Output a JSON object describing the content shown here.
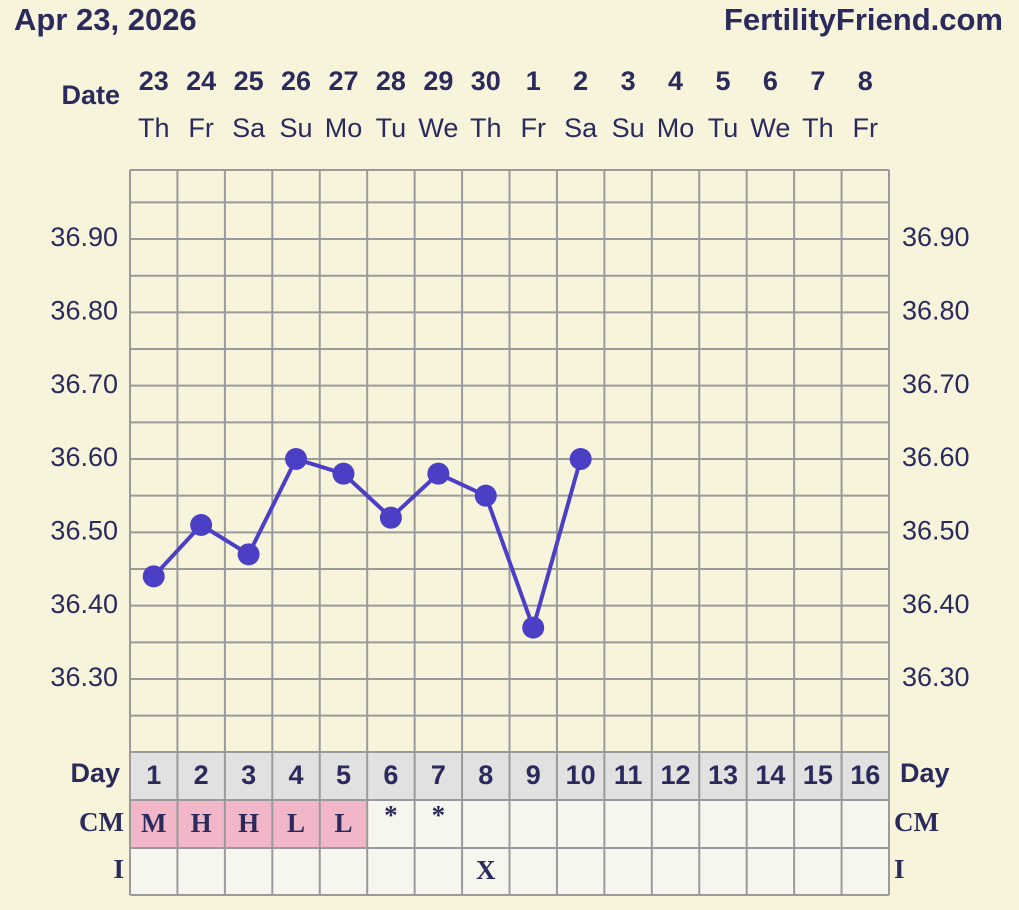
{
  "chart_data": {
    "type": "line",
    "title": "Apr 23, 2026",
    "site": "FertilityFriend.com",
    "date_label": "Date",
    "day_label": "Day",
    "cm_label": "CM",
    "intercourse_label": "I",
    "categories": [
      "23",
      "24",
      "25",
      "26",
      "27",
      "28",
      "29",
      "30",
      "1",
      "2",
      "3",
      "4",
      "5",
      "6",
      "7",
      "8"
    ],
    "weekdays": [
      "Th",
      "Fr",
      "Sa",
      "Su",
      "Mo",
      "Tu",
      "We",
      "Th",
      "Fr",
      "Sa",
      "Su",
      "Mo",
      "Tu",
      "We",
      "Th",
      "Fr"
    ],
    "days": [
      1,
      2,
      3,
      4,
      5,
      6,
      7,
      8,
      9,
      10,
      11,
      12,
      13,
      14,
      15,
      16
    ],
    "cm": [
      "M",
      "H",
      "H",
      "L",
      "L",
      "*",
      "*",
      null,
      null,
      null,
      null,
      null,
      null,
      null,
      null,
      null
    ],
    "intercourse": [
      null,
      null,
      null,
      null,
      null,
      null,
      null,
      "X",
      null,
      null,
      null,
      null,
      null,
      null,
      null,
      null
    ],
    "series": [
      {
        "color": "#4b3fc6",
        "values": [
          36.44,
          36.51,
          36.47,
          36.6,
          36.58,
          36.52,
          36.58,
          36.55,
          36.37,
          36.6,
          null,
          null,
          null,
          null,
          null,
          null
        ]
      }
    ],
    "ylim": [
      36.2,
      37.0
    ],
    "yticks": [
      {
        "value": 36.3,
        "label": "36.30"
      },
      {
        "value": 36.4,
        "label": "36.40"
      },
      {
        "value": 36.5,
        "label": "36.50"
      },
      {
        "value": 36.6,
        "label": "36.60"
      },
      {
        "value": 36.7,
        "label": "36.70"
      },
      {
        "value": 36.8,
        "label": "36.80"
      },
      {
        "value": 36.9,
        "label": "36.90"
      }
    ],
    "minor_yticks": [
      36.25,
      36.35,
      36.45,
      36.55,
      36.65,
      36.75,
      36.85,
      36.95
    ],
    "grid": true
  }
}
